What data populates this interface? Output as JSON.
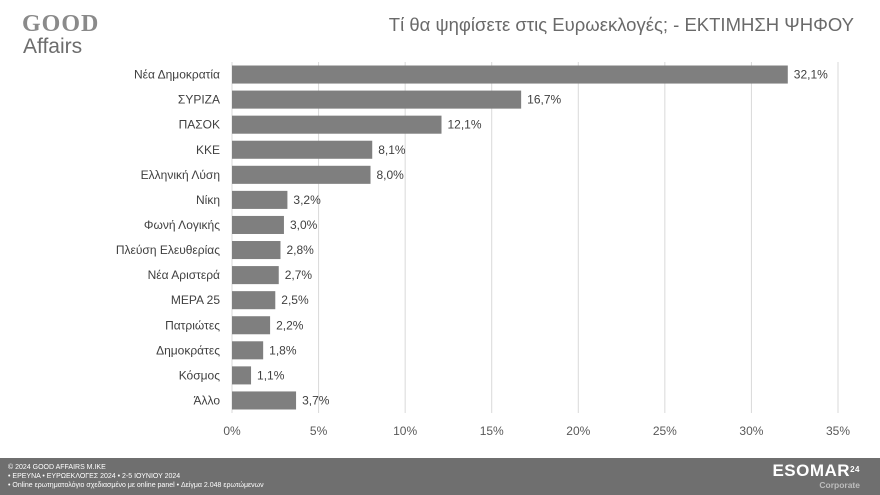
{
  "logo": {
    "top": "GOOD",
    "bottom": "Affairs"
  },
  "title": "Τί θα ψηφίσετε στις Ευρωεκλογές; - ΕΚΤΙΜΗΣΗ ΨΗΦΟΥ",
  "chart_data": {
    "type": "bar",
    "orientation": "horizontal",
    "title": "Τί θα ψηφίσετε στις Ευρωεκλογές; - ΕΚΤΙΜΗΣΗ ΨΗΦΟΥ",
    "categories": [
      "Νέα Δημοκρατία",
      "ΣΥΡΙΖΑ",
      "ΠΑΣΟΚ",
      "ΚΚΕ",
      "Ελληνική Λύση",
      "Νίκη",
      "Φωνή Λογικής",
      "Πλεύση Ελευθερίας",
      "Νέα Αριστερά",
      "ΜΕΡΑ 25",
      "Πατριώτες",
      "Δημοκράτες",
      "Κόσμος",
      "Άλλο"
    ],
    "values": [
      32.1,
      16.7,
      12.1,
      8.1,
      8.0,
      3.2,
      3.0,
      2.8,
      2.7,
      2.5,
      2.2,
      1.8,
      1.1,
      3.7
    ],
    "value_labels": [
      "32,1%",
      "16,7%",
      "12,1%",
      "8,1%",
      "8,0%",
      "3,2%",
      "3,0%",
      "2,8%",
      "2,7%",
      "2,5%",
      "2,2%",
      "1,8%",
      "1,1%",
      "3,7%"
    ],
    "xlim": [
      0,
      35
    ],
    "x_ticks": [
      0,
      5,
      10,
      15,
      20,
      25,
      30,
      35
    ],
    "x_tick_labels": [
      "0%",
      "5%",
      "10%",
      "15%",
      "20%",
      "25%",
      "30%",
      "35%"
    ],
    "grid": true,
    "bar_color": "#7f7f7f"
  },
  "footer": {
    "line1": "© 2024 GOOD AFFAIRS M.IKE",
    "line2": "• ΕΡΕΥΝΑ • ΕΥΡΩΕΚΛΟΓΕΣ 2024 • 2-5 ΙΟΥΝΙΟΥ 2024",
    "line3": "• Online ερωτηματολόγιο σχεδιασμένο με online panel  • Δείγμα 2.048 ερωτώμενων",
    "esomar_name": "ESOMAR",
    "esomar_sup": "24",
    "esomar_sub": "Corporate"
  }
}
